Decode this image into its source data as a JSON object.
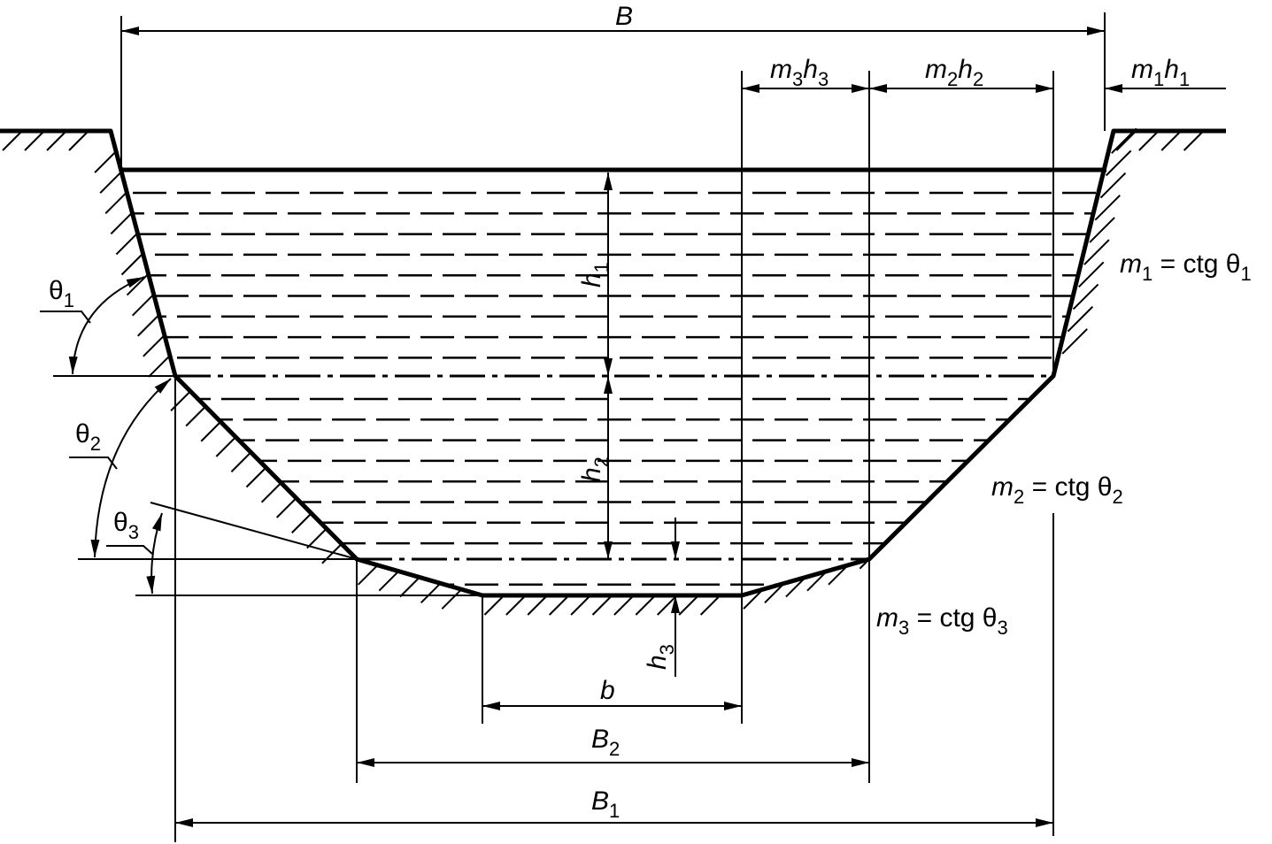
{
  "labels": [
    [
      "B"
    ],
    [
      "m",
      "3",
      "h",
      "3"
    ],
    [
      "m",
      "2",
      "h",
      "2"
    ],
    [
      "m",
      "1",
      "h",
      "1"
    ],
    [
      "h",
      "1"
    ],
    [
      "h",
      "2"
    ],
    [
      "h",
      "3"
    ],
    [
      "b"
    ],
    [
      "B",
      "2"
    ],
    [
      "B",
      "1"
    ],
    [
      "θ",
      "1"
    ],
    [
      "θ",
      "2"
    ],
    [
      "θ",
      "3"
    ],
    [
      "m",
      "1",
      " = ctg θ",
      "1"
    ],
    [
      "m",
      "2",
      " = ctg θ",
      "2"
    ],
    [
      "m",
      "3",
      " = ctg θ",
      "3"
    ]
  ]
}
